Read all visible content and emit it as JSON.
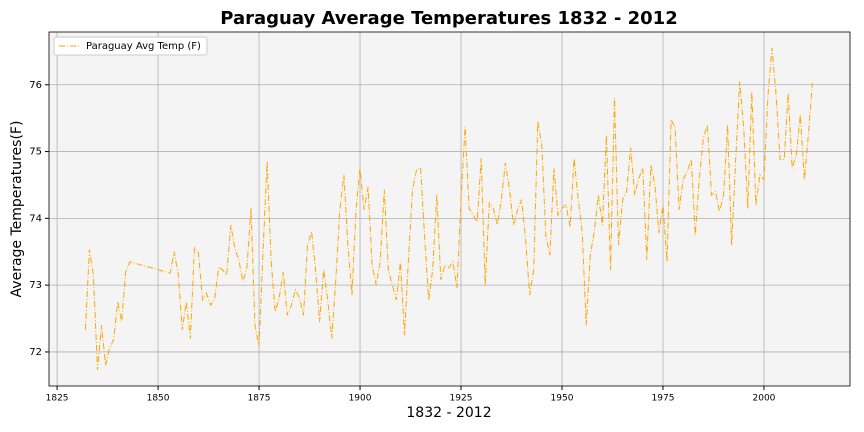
{
  "chart_data": {
    "type": "line",
    "title": "Paraguay Average Temperatures 1832 - 2012",
    "xlabel": "1832 - 2012",
    "ylabel": "Average Temperatures(F)",
    "x": [
      1832,
      1833,
      1834,
      1835,
      1836,
      1837,
      1838,
      1839,
      1840,
      1841,
      1842,
      1843,
      1853,
      1854,
      1855,
      1856,
      1857,
      1858,
      1859,
      1860,
      1861,
      1862,
      1863,
      1864,
      1865,
      1866,
      1867,
      1868,
      1869,
      1870,
      1871,
      1872,
      1873,
      1874,
      1875,
      1876,
      1877,
      1878,
      1879,
      1880,
      1881,
      1882,
      1883,
      1884,
      1885,
      1886,
      1887,
      1888,
      1889,
      1890,
      1891,
      1892,
      1893,
      1894,
      1895,
      1896,
      1897,
      1898,
      1899,
      1900,
      1901,
      1902,
      1903,
      1904,
      1905,
      1906,
      1907,
      1908,
      1909,
      1910,
      1911,
      1912,
      1913,
      1914,
      1915,
      1916,
      1917,
      1918,
      1919,
      1920,
      1921,
      1922,
      1923,
      1924,
      1925,
      1926,
      1927,
      1928,
      1929,
      1930,
      1931,
      1932,
      1933,
      1934,
      1935,
      1936,
      1937,
      1938,
      1939,
      1940,
      1941,
      1942,
      1943,
      1944,
      1945,
      1946,
      1947,
      1948,
      1949,
      1950,
      1951,
      1952,
      1953,
      1954,
      1955,
      1956,
      1957,
      1958,
      1959,
      1960,
      1961,
      1962,
      1963,
      1964,
      1965,
      1966,
      1967,
      1968,
      1969,
      1970,
      1971,
      1972,
      1973,
      1974,
      1975,
      1976,
      1977,
      1978,
      1979,
      1980,
      1981,
      1982,
      1983,
      1984,
      1985,
      1986,
      1987,
      1988,
      1989,
      1990,
      1991,
      1992,
      1993,
      1994,
      1995,
      1996,
      1997,
      1998,
      1999,
      2000,
      2001,
      2002,
      2003,
      2004,
      2005,
      2006,
      2007,
      2008,
      2009,
      2010,
      2011,
      2012
    ],
    "series": [
      {
        "name": "Paraguay Avg Temp (F)",
        "color": "#ffa500",
        "values": [
          72.33,
          73.53,
          73.15,
          71.73,
          72.4,
          71.8,
          72.06,
          72.18,
          72.75,
          72.45,
          73.2,
          73.35,
          73.18,
          73.5,
          73.15,
          72.33,
          72.75,
          72.2,
          73.56,
          73.48,
          72.78,
          72.88,
          72.7,
          72.78,
          73.27,
          73.23,
          73.15,
          73.9,
          73.55,
          73.38,
          73.05,
          73.26,
          74.15,
          72.4,
          72.08,
          73.53,
          74.85,
          73.35,
          72.6,
          72.81,
          73.2,
          72.55,
          72.7,
          72.93,
          72.81,
          72.55,
          73.6,
          73.8,
          73.23,
          72.45,
          73.23,
          72.78,
          72.2,
          73.08,
          74.13,
          74.65,
          73.6,
          72.85,
          74.13,
          74.75,
          74.13,
          74.47,
          73.3,
          73.0,
          73.35,
          74.43,
          73.23,
          73.0,
          72.78,
          73.35,
          72.25,
          73.4,
          74.43,
          74.73,
          74.76,
          73.7,
          72.78,
          73.23,
          74.35,
          73.08,
          73.3,
          73.26,
          73.35,
          72.96,
          74.28,
          75.37,
          74.15,
          74.05,
          73.95,
          74.9,
          73.0,
          74.23,
          74.15,
          73.9,
          74.28,
          74.83,
          74.43,
          73.9,
          74.13,
          74.28,
          73.68,
          72.85,
          73.23,
          75.45,
          75.1,
          73.75,
          73.45,
          74.75,
          74.05,
          74.15,
          74.2,
          73.87,
          74.9,
          74.28,
          73.8,
          72.4,
          73.45,
          73.8,
          74.35,
          73.9,
          75.25,
          73.23,
          75.8,
          73.6,
          74.28,
          74.4,
          75.06,
          74.35,
          74.6,
          74.75,
          73.38,
          74.8,
          74.5,
          73.78,
          74.2,
          73.35,
          75.48,
          75.36,
          74.13,
          74.58,
          74.7,
          74.88,
          73.75,
          74.6,
          75.2,
          75.4,
          74.35,
          74.4,
          74.1,
          74.35,
          75.4,
          73.6,
          74.88,
          76.05,
          75.33,
          74.15,
          75.9,
          74.2,
          74.65,
          74.58,
          75.85,
          76.55,
          75.85,
          74.88,
          74.88,
          75.88,
          74.75,
          74.95,
          75.55,
          74.58,
          75.25,
          76.03
        ]
      }
    ],
    "xlim": [
      1823,
      2021.3
    ],
    "ylim": [
      71.49,
      76.79
    ],
    "xticks": [
      1825,
      1850,
      1875,
      1900,
      1925,
      1950,
      1975,
      2000
    ],
    "yticks": [
      72,
      73,
      74,
      75,
      76
    ],
    "grid": true,
    "legend": "upper left"
  }
}
